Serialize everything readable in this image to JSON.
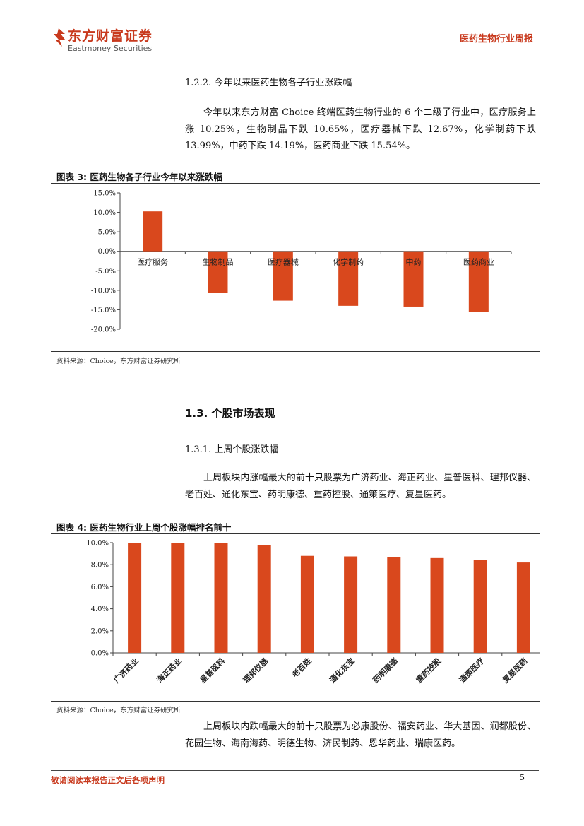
{
  "header": {
    "company_cn": "东方财富证券",
    "company_en": "Eastmoney Securities",
    "report_type": "医药生物行业周报"
  },
  "section_1_2_2": {
    "heading": "1.2.2.  今年以来医药生物各子行业涨跌幅",
    "body": "今年以来东方财富 Choice 终端医药生物行业的 6 个二级子行业中，医疗服务上涨 10.25%，生物制品下跌 10.65%，医疗器械下跌 12.67%，化学制药下跌 13.99%，中药下跌 14.19%，医药商业下跌 15.54%。"
  },
  "figure3": {
    "title": "图表 3:  医药生物各子行业今年以来涨跌幅",
    "source": "资料来源：Choice，东方财富证券研究所"
  },
  "section_1_3": {
    "heading": "1.3.  个股市场表现"
  },
  "section_1_3_1": {
    "heading": "1.3.1.  上周个股涨跌幅",
    "body": "上周板块内涨幅最大的前十只股票为广济药业、海正药业、星普医科、理邦仪器、老百姓、通化东宝、药明康德、重药控股、通策医疗、复星医药。"
  },
  "figure4": {
    "title": "图表 4:  医药生物行业上周个股涨幅排名前十",
    "source": "资料来源：Choice，东方财富证券研究所"
  },
  "closing": {
    "body": "上周板块内跌幅最大的前十只股票为必康股份、福安药业、华大基因、润都股份、花园生物、海南海药、明德生物、济民制药、恩华药业、瑞康医药。"
  },
  "footer": {
    "disclaimer": "敬请阅读本报告正文后各项声明",
    "page": "5"
  },
  "chart_data": [
    {
      "type": "bar",
      "categories": [
        "医疗服务",
        "生物制品",
        "医疗器械",
        "化学制药",
        "中药",
        "医药商业"
      ],
      "values": [
        10.25,
        -10.65,
        -12.67,
        -13.99,
        -14.19,
        -15.54
      ],
      "ylim": [
        -20,
        15
      ],
      "ticks": [
        "15.0%",
        "10.0%",
        "5.0%",
        "0.0%",
        "-5.0%",
        "-10.0%",
        "-15.0%",
        "-20.0%"
      ],
      "tick_values": [
        15,
        10,
        5,
        0,
        -5,
        -10,
        -15,
        -20
      ],
      "bar_color": "#d9481d",
      "grid": false
    },
    {
      "type": "bar",
      "categories": [
        "广济药业",
        "海正药业",
        "星普医科",
        "理邦仪器",
        "老百姓",
        "通化东宝",
        "药明康德",
        "重药控股",
        "通策医疗",
        "复星医药"
      ],
      "values": [
        10.0,
        10.0,
        10.0,
        9.8,
        8.8,
        8.75,
        8.7,
        8.6,
        8.4,
        8.2
      ],
      "ylim": [
        0,
        10
      ],
      "ticks": [
        "10.0%",
        "8.0%",
        "6.0%",
        "4.0%",
        "2.0%",
        "0.0%"
      ],
      "tick_values": [
        10,
        8,
        6,
        4,
        2,
        0
      ],
      "bar_color": "#d9481d",
      "grid": false
    }
  ]
}
